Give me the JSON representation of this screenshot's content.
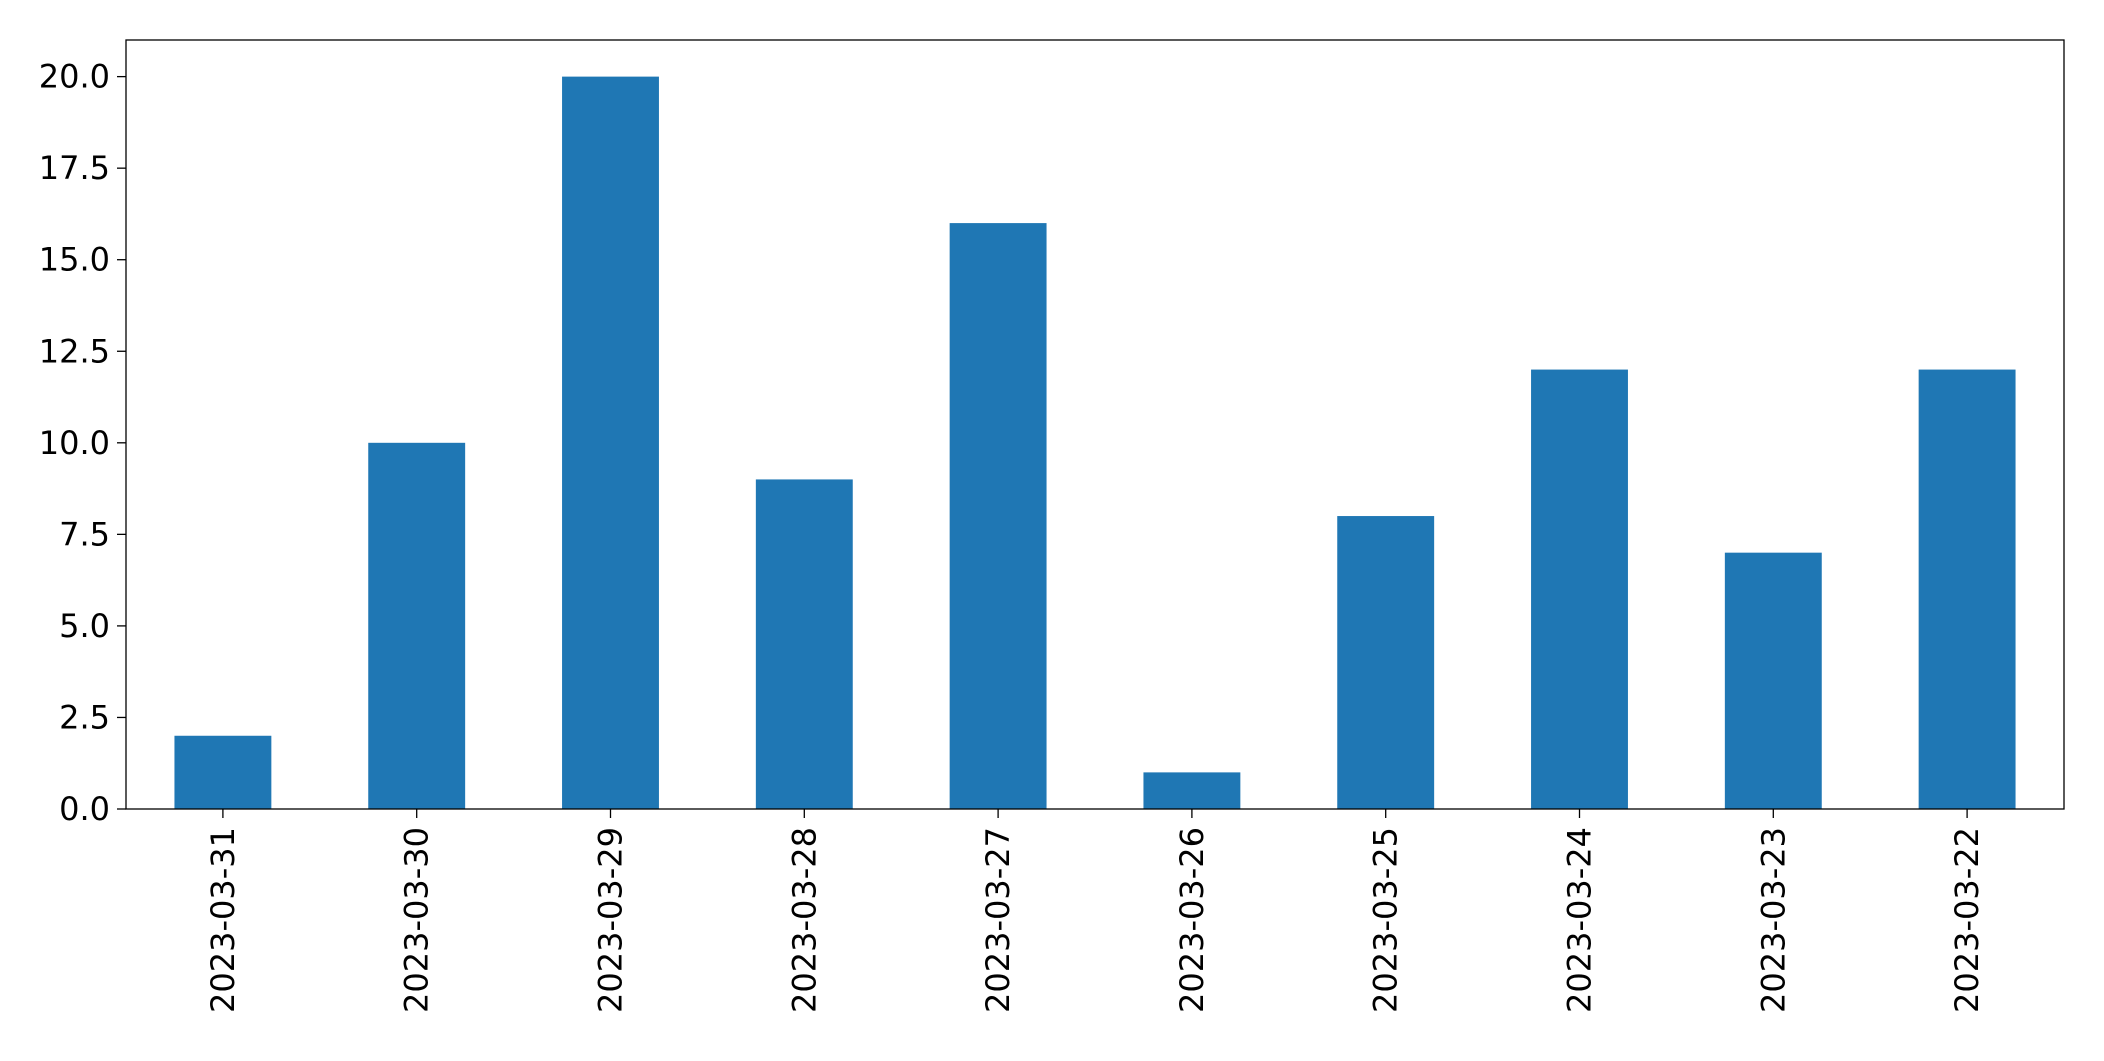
{
  "chart_data": {
    "type": "bar",
    "categories": [
      "2023-03-31",
      "2023-03-30",
      "2023-03-29",
      "2023-03-28",
      "2023-03-27",
      "2023-03-26",
      "2023-03-25",
      "2023-03-24",
      "2023-03-23",
      "2023-03-22"
    ],
    "values": [
      2,
      10,
      20,
      9,
      16,
      1,
      8,
      12,
      7,
      12
    ],
    "color": "#1f77b4",
    "ylim": [
      0,
      21
    ],
    "yticks": [
      {
        "value": 0,
        "label": "0.0"
      },
      2.5,
      {
        "value": 5,
        "label": "5.0"
      },
      7.5,
      {
        "value": 10,
        "label": "10.0"
      },
      12.5,
      {
        "value": 15,
        "label": "15.0"
      },
      17.5,
      {
        "value": 20,
        "label": "20.0"
      }
    ],
    "grid": false
  }
}
